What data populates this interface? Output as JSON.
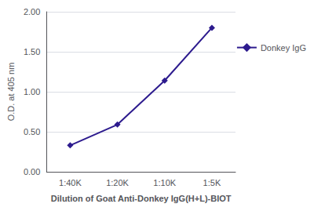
{
  "chart_data": {
    "type": "line",
    "xlabel": "Dilution of Goat Anti-Donkey IgG(H+L)-BIOT",
    "ylabel": "O.D. at 405 nm",
    "categories": [
      "1:40K",
      "1:20K",
      "1:10K",
      "1:5K"
    ],
    "series": [
      {
        "name": "Donkey IgG",
        "color": "#2d1b8e",
        "marker": "diamond",
        "values": [
          0.33,
          0.59,
          1.14,
          1.8
        ]
      }
    ],
    "ylim": [
      0.0,
      2.0
    ],
    "yticks": [
      {
        "value": 0.0,
        "label": "0.00"
      },
      {
        "value": 0.5,
        "label": "0.50"
      },
      {
        "value": 1.0,
        "label": "1.00"
      },
      {
        "value": 1.5,
        "label": "1.50"
      },
      {
        "value": 2.0,
        "label": "2.00"
      }
    ],
    "grid": true,
    "legend": "right"
  }
}
